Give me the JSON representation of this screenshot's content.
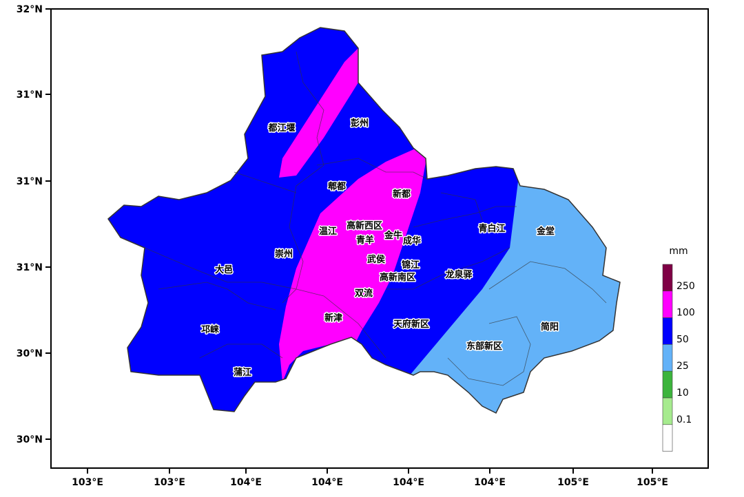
{
  "map": {
    "y_ticks": [
      "32°N",
      "31°N",
      "31°N",
      "31°N",
      "30°N",
      "30°N"
    ],
    "x_ticks": [
      "103°E",
      "103°E",
      "104°E",
      "104°E",
      "104°E",
      "104°E",
      "105°E",
      "105°E"
    ],
    "districts": [
      "都江堰",
      "彭州",
      "郫都",
      "新都",
      "温江",
      "高新西区",
      "金牛",
      "青羊",
      "成华",
      "崇州",
      "大邑",
      "武侯",
      "锦江",
      "高新南区",
      "龙泉驿",
      "青白江",
      "金堂",
      "双流",
      "新津",
      "天府新区",
      "简阳",
      "东部新区",
      "邛崃",
      "蒲江"
    ],
    "legend": {
      "unit": "mm",
      "labels": [
        "250",
        "100",
        "50",
        "25",
        "10",
        "0.1"
      ],
      "colors": [
        "#7f0045",
        "#ff00ff",
        "#0000ff",
        "#63b2f8",
        "#3cb43c",
        "#a6eb8e",
        "#ffffff"
      ]
    }
  }
}
